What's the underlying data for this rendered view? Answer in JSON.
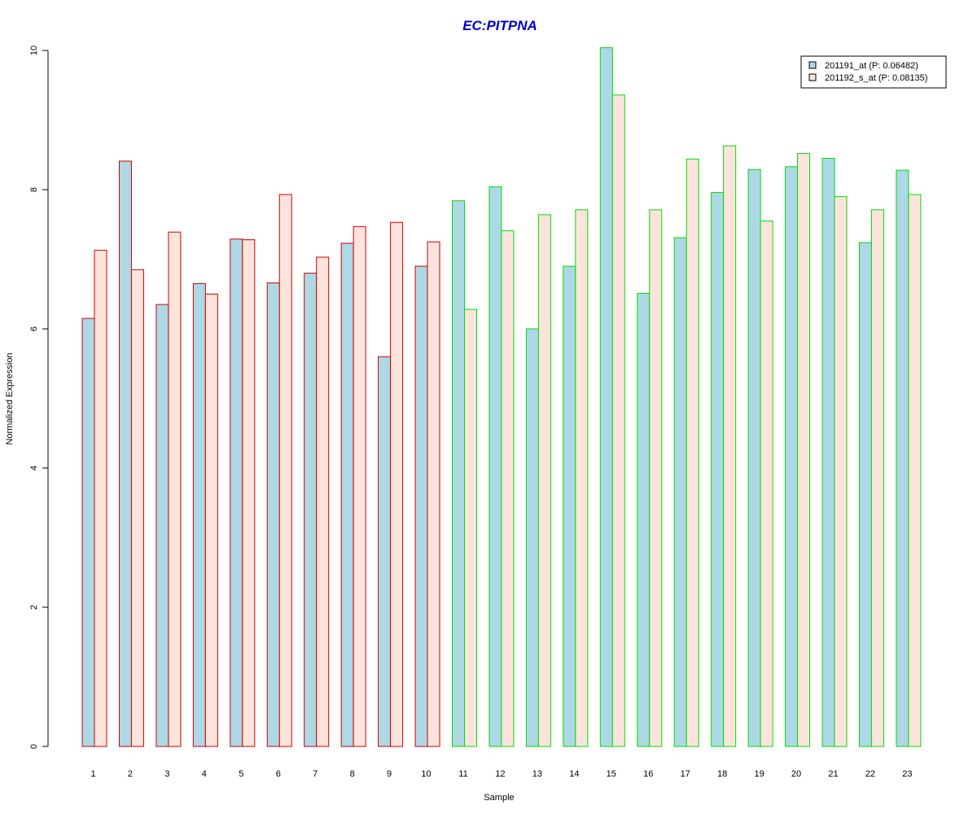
{
  "chart_data": {
    "type": "bar",
    "title": "EC:PITPNA",
    "xlabel": "Sample",
    "ylabel": "Normalized Expression",
    "ylim": [
      0,
      10
    ],
    "yticks": [
      "0",
      "2",
      "4",
      "6",
      "8",
      "10"
    ],
    "grid": false,
    "legend_position": "top-right",
    "categories": [
      "1",
      "2",
      "3",
      "4",
      "5",
      "6",
      "7",
      "8",
      "9",
      "10",
      "11",
      "12",
      "13",
      "14",
      "15",
      "16",
      "17",
      "18",
      "19",
      "20",
      "21",
      "22",
      "23"
    ],
    "series": [
      {
        "name": "201191_at (P: 0.06482)",
        "fill": "#add8e6",
        "values": [
          6.15,
          8.41,
          6.35,
          6.65,
          7.29,
          6.66,
          6.8,
          7.23,
          5.6,
          6.9,
          7.84,
          8.04,
          6.0,
          6.9,
          10.04,
          6.51,
          7.31,
          7.96,
          8.29,
          8.33,
          8.45,
          7.24,
          8.28
        ]
      },
      {
        "name": "201192_s_at (P: 0.08135)",
        "fill": "#fce4dc",
        "values": [
          7.13,
          6.85,
          7.39,
          6.5,
          7.28,
          7.93,
          7.03,
          7.47,
          7.53,
          7.25,
          6.28,
          7.41,
          7.64,
          7.71,
          9.36,
          7.71,
          8.44,
          8.63,
          7.55,
          8.52,
          7.9,
          7.71,
          7.93
        ]
      }
    ],
    "group_border_colors": {
      "samples_1_to_10": "#d00000",
      "samples_11_to_23": "#00dd00"
    }
  }
}
